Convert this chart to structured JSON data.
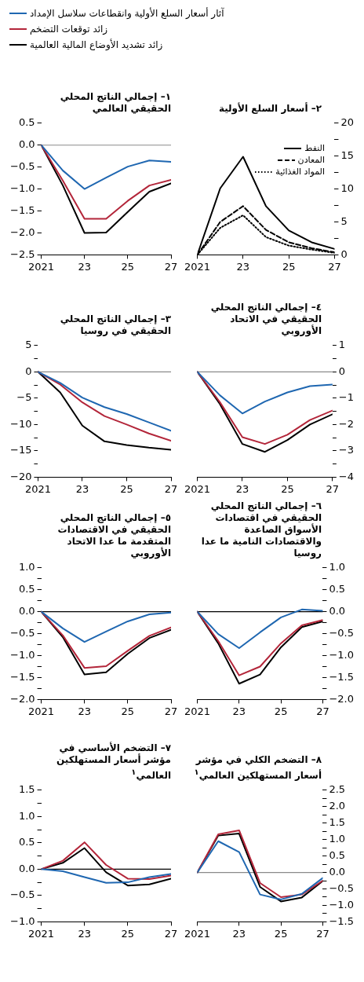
{
  "chart_data": [
    {
      "type": "line",
      "title": "١– إجمالي الناتج المحلي الحقيقي العالمي",
      "legend": "top",
      "x": [
        2021,
        2022,
        2023,
        2024,
        2025,
        2026,
        2027
      ],
      "xlim": [
        2021,
        2027
      ],
      "xticks": [
        {
          "value": 2021,
          "label": "2021"
        },
        {
          "value": 2023,
          "label": "23"
        },
        {
          "value": 2025,
          "label": "25"
        },
        {
          "value": 2027,
          "label": "27"
        }
      ],
      "ylim": [
        -2.5,
        0.5
      ],
      "yticks": [
        {
          "value": -2.5,
          "label": "−2.5"
        },
        {
          "value": -2,
          "label": "−2.0"
        },
        {
          "value": -1.5,
          "label": "−1.5"
        },
        {
          "value": -1,
          "label": "−1.0"
        },
        {
          "value": -0.5,
          "label": "−0.5"
        },
        {
          "value": 0,
          "label": "0.0"
        },
        {
          "value": 0.5,
          "label": "0.5"
        }
      ],
      "grid": false,
      "ref_lines": [
        {
          "axis": "y",
          "value": 0,
          "color": "#8a8a8a"
        }
      ],
      "series": [
        {
          "name": "آثار أسعار السلع الأولية وانقطاعات سلاسل الإمداد",
          "color": "#1f67b1",
          "values": [
            0,
            -0.58,
            -1.0,
            -0.74,
            -0.49,
            -0.35,
            -0.38
          ]
        },
        {
          "name": "زائد توقعات التضخم",
          "color": "#b3263a",
          "values": [
            0,
            -0.81,
            -1.68,
            -1.68,
            -1.27,
            -0.92,
            -0.79
          ]
        },
        {
          "name": "زائد تشديد الأوضاع المالية العالمية",
          "color": "#000000",
          "values": [
            0,
            -0.92,
            -2.0,
            -1.99,
            -1.52,
            -1.06,
            -0.87
          ]
        }
      ]
    },
    {
      "type": "line",
      "title": "٢– أسعار السلع الأولية",
      "legend": "right",
      "x": [
        2021,
        2022,
        2023,
        2024,
        2025,
        2026,
        2027
      ],
      "xlim": [
        2021,
        2027
      ],
      "xticks": [
        {
          "value": 2021,
          "label": "2021"
        },
        {
          "value": 2023,
          "label": "23"
        },
        {
          "value": 2025,
          "label": "25"
        },
        {
          "value": 2027,
          "label": "27"
        }
      ],
      "ylim": [
        0,
        20
      ],
      "yticks": [
        0,
        {
          "value": 2.5,
          "label": null
        },
        5,
        {
          "value": 7.5,
          "label": null
        },
        10,
        {
          "value": 12.5,
          "label": null
        },
        15,
        {
          "value": 17.5,
          "label": null
        },
        20
      ],
      "grid": false,
      "series": [
        {
          "name": "النفط",
          "color": "#000000",
          "line_style": "solid",
          "values": [
            0,
            10.1,
            14.9,
            7.4,
            3.7,
            1.9,
            0.9
          ]
        },
        {
          "name": "المعادن",
          "color": "#000000",
          "line_style": "dashed",
          "values": [
            0,
            5.0,
            7.4,
            3.8,
            1.9,
            1.0,
            0.4
          ]
        },
        {
          "name": "المواد الغذائية",
          "color": "#000000",
          "line_style": "dotted",
          "values": [
            0,
            4.1,
            6.0,
            2.7,
            1.4,
            0.8,
            0.3
          ]
        }
      ]
    },
    {
      "type": "line",
      "title": "٣– إجمالي الناتج المحلي الحقيقي في روسيا",
      "x": [
        2021,
        2022,
        2023,
        2024,
        2025,
        2026,
        2027
      ],
      "xlim": [
        2021,
        2027
      ],
      "xticks": [
        {
          "value": 2021,
          "label": "2021"
        },
        {
          "value": 2023,
          "label": "23"
        },
        {
          "value": 2025,
          "label": "25"
        },
        {
          "value": 2027,
          "label": "27"
        }
      ],
      "ylim": [
        -20,
        5
      ],
      "yticks": [
        {
          "value": -20,
          "label": "−20"
        },
        {
          "value": -17.5,
          "label": null
        },
        {
          "value": -15,
          "label": "−15"
        },
        {
          "value": -12.5,
          "label": null
        },
        {
          "value": -10,
          "label": "−10"
        },
        {
          "value": -7.5,
          "label": null
        },
        {
          "value": -5,
          "label": "−5"
        },
        {
          "value": -2.5,
          "label": null
        },
        0,
        {
          "value": 2.5,
          "label": null
        },
        5
      ],
      "grid": false,
      "ref_lines": [
        {
          "axis": "y",
          "value": 0,
          "color": "#8a8a8a"
        }
      ],
      "series": [
        {
          "color": "#1f67b1",
          "values": [
            0,
            -2.1,
            -4.9,
            -6.7,
            -8.0,
            -9.6,
            -11.2
          ]
        },
        {
          "color": "#b3263a",
          "values": [
            0,
            -2.4,
            -5.8,
            -8.4,
            -10.0,
            -11.7,
            -13.1
          ]
        },
        {
          "color": "#000000",
          "values": [
            0,
            -3.9,
            -10.2,
            -13.2,
            -13.9,
            -14.4,
            -14.8
          ]
        }
      ]
    },
    {
      "type": "line",
      "title": "٤– إجمالي الناتج المحلي الحقيقي في الاتحاد الأوروبي",
      "x": [
        2021,
        2022,
        2023,
        2024,
        2025,
        2026,
        2027
      ],
      "xlim": [
        2021,
        2027
      ],
      "xticks": [
        {
          "value": 2021,
          "label": "2021"
        },
        {
          "value": 2023,
          "label": "23"
        },
        {
          "value": 2025,
          "label": "25"
        },
        {
          "value": 2027,
          "label": "27"
        }
      ],
      "ylim": [
        -4,
        1
      ],
      "yticks": [
        {
          "value": -4,
          "label": "−4"
        },
        {
          "value": -3.5,
          "label": null
        },
        {
          "value": -3,
          "label": "−3"
        },
        {
          "value": -2.5,
          "label": null
        },
        {
          "value": -2,
          "label": "−2"
        },
        {
          "value": -1.5,
          "label": null
        },
        {
          "value": -1,
          "label": "−1"
        },
        {
          "value": -0.5,
          "label": null
        },
        0,
        {
          "value": 0.5,
          "label": null
        },
        1
      ],
      "grid": false,
      "ref_lines": [
        {
          "axis": "y",
          "value": 0,
          "color": "#8a8a8a"
        }
      ],
      "series": [
        {
          "color": "#1f67b1",
          "values": [
            0,
            -0.89,
            -1.58,
            -1.13,
            -0.78,
            -0.54,
            -0.48
          ]
        },
        {
          "color": "#b3263a",
          "values": [
            0,
            -1.15,
            -2.48,
            -2.74,
            -2.39,
            -1.83,
            -1.47
          ]
        },
        {
          "color": "#000000",
          "values": [
            0,
            -1.22,
            -2.74,
            -3.04,
            -2.59,
            -2.0,
            -1.61
          ]
        }
      ]
    },
    {
      "type": "line",
      "title": "٥– إجمالي الناتج المحلي الحقيقي في الاقتصادات المتقدمة ما عدا الاتحاد الأوروبي",
      "x": [
        2021,
        2022,
        2023,
        2024,
        2025,
        2026,
        2027
      ],
      "xlim": [
        2021,
        2027
      ],
      "xticks": [
        {
          "value": 2021,
          "label": "2021"
        },
        {
          "value": 2023,
          "label": "23"
        },
        {
          "value": 2025,
          "label": "25"
        },
        {
          "value": 2027,
          "label": "27"
        }
      ],
      "ylim": [
        -2,
        1
      ],
      "yticks": [
        {
          "value": -2,
          "label": "−2.0"
        },
        {
          "value": -1.75,
          "label": null
        },
        {
          "value": -1.5,
          "label": "−1.5"
        },
        {
          "value": -1.25,
          "label": null
        },
        {
          "value": -1,
          "label": "−1.0"
        },
        {
          "value": -0.75,
          "label": null
        },
        {
          "value": -0.5,
          "label": "−0.5"
        },
        {
          "value": -0.25,
          "label": null
        },
        {
          "value": 0,
          "label": "0.0"
        },
        {
          "value": 0.25,
          "label": null
        },
        {
          "value": 0.5,
          "label": "0.5"
        },
        {
          "value": 0.75,
          "label": null
        },
        {
          "value": 1,
          "label": "1.0"
        }
      ],
      "grid": false,
      "ref_lines": [
        {
          "axis": "y",
          "value": 0,
          "color": "#000000"
        }
      ],
      "series": [
        {
          "color": "#1f67b1",
          "values": [
            0,
            -0.38,
            -0.69,
            -0.45,
            -0.22,
            -0.06,
            -0.02
          ]
        },
        {
          "color": "#b3263a",
          "values": [
            0,
            -0.54,
            -1.28,
            -1.24,
            -0.89,
            -0.55,
            -0.36
          ]
        },
        {
          "color": "#000000",
          "values": [
            0,
            -0.58,
            -1.43,
            -1.38,
            -0.96,
            -0.6,
            -0.41
          ]
        }
      ]
    },
    {
      "type": "line",
      "title": "٦– إجمالي الناتج المحلي الحقيقي في اقتصادات الأسواق الصاعدة والاقتصادات النامية ما عدا روسيا",
      "x": [
        2021,
        2022,
        2023,
        2024,
        2025,
        2026,
        2027
      ],
      "xlim": [
        2021,
        2027
      ],
      "xticks": [
        {
          "value": 2021,
          "label": "2021"
        },
        {
          "value": 2023,
          "label": "23"
        },
        {
          "value": 2025,
          "label": "25"
        },
        {
          "value": 2027,
          "label": "27"
        }
      ],
      "ylim": [
        -2,
        1
      ],
      "yticks": [
        {
          "value": -2,
          "label": "−2.0"
        },
        {
          "value": -1.75,
          "label": null
        },
        {
          "value": -1.5,
          "label": "−1.5"
        },
        {
          "value": -1.25,
          "label": null
        },
        {
          "value": -1,
          "label": "−1.0"
        },
        {
          "value": -0.75,
          "label": null
        },
        {
          "value": -0.5,
          "label": "−0.5"
        },
        {
          "value": -0.25,
          "label": null
        },
        {
          "value": 0,
          "label": "0.0"
        },
        {
          "value": 0.25,
          "label": null
        },
        {
          "value": 0.5,
          "label": "0.5"
        },
        {
          "value": 0.75,
          "label": null
        },
        {
          "value": 1,
          "label": "1.0"
        }
      ],
      "grid": false,
      "ref_lines": [
        {
          "axis": "y",
          "value": 0,
          "color": "#000000"
        }
      ],
      "series": [
        {
          "color": "#1f67b1",
          "values": [
            0,
            -0.51,
            -0.83,
            -0.47,
            -0.13,
            0.05,
            0.02
          ]
        },
        {
          "color": "#b3263a",
          "values": [
            0,
            -0.67,
            -1.45,
            -1.25,
            -0.72,
            -0.31,
            -0.19
          ]
        },
        {
          "color": "#000000",
          "values": [
            0,
            -0.72,
            -1.64,
            -1.43,
            -0.81,
            -0.35,
            -0.22
          ]
        }
      ]
    },
    {
      "type": "line",
      "title": "٧– التضخم الأساسي في مؤشر أسعار المستهلكين العالمي$^{١}$",
      "x": [
        2021,
        2022,
        2023,
        2024,
        2025,
        2026,
        2027
      ],
      "xlim": [
        2021,
        2027
      ],
      "xticks": [
        {
          "value": 2021,
          "label": "2021"
        },
        {
          "value": 2023,
          "label": "23"
        },
        {
          "value": 2025,
          "label": "25"
        },
        {
          "value": 2027,
          "label": "27"
        }
      ],
      "ylim": [
        -1,
        1.5
      ],
      "yticks": [
        {
          "value": -1,
          "label": "−1.0"
        },
        {
          "value": -0.75,
          "label": null
        },
        {
          "value": -0.5,
          "label": "−0.5"
        },
        {
          "value": -0.25,
          "label": null
        },
        {
          "value": 0,
          "label": "0.0"
        },
        {
          "value": 0.25,
          "label": null
        },
        {
          "value": 0.5,
          "label": "0.5"
        },
        {
          "value": 0.75,
          "label": null
        },
        {
          "value": 1,
          "label": "1.0"
        },
        {
          "value": 1.25,
          "label": null
        },
        {
          "value": 1.5,
          "label": "1.5"
        }
      ],
      "grid": false,
      "ref_lines": [
        {
          "axis": "y",
          "value": 0,
          "color": "#000000"
        }
      ],
      "series": [
        {
          "color": "#1f67b1",
          "values": [
            0,
            -0.04,
            -0.15,
            -0.26,
            -0.25,
            -0.15,
            -0.09
          ]
        },
        {
          "color": "#b3263a",
          "values": [
            0,
            0.16,
            0.51,
            0.08,
            -0.18,
            -0.19,
            -0.12
          ]
        },
        {
          "color": "#000000",
          "values": [
            0,
            0.12,
            0.4,
            -0.06,
            -0.31,
            -0.29,
            -0.18
          ]
        }
      ]
    },
    {
      "type": "line",
      "title": "٨– التضخم الكلي في مؤشر أسعار المستهلكين العالمي$^{١}$",
      "x": [
        2021,
        2022,
        2023,
        2024,
        2025,
        2026,
        2027
      ],
      "xlim": [
        2021,
        2027
      ],
      "xticks": [
        {
          "value": 2021,
          "label": "2021"
        },
        {
          "value": 2023,
          "label": "23"
        },
        {
          "value": 2025,
          "label": "25"
        },
        {
          "value": 2027,
          "label": "27"
        }
      ],
      "ylim": [
        -1.5,
        2.5
      ],
      "yticks": [
        {
          "value": -1.5,
          "label": "−1.5"
        },
        {
          "value": -1.25,
          "label": null
        },
        {
          "value": -1,
          "label": "−1.0"
        },
        {
          "value": -0.75,
          "label": null
        },
        {
          "value": -0.5,
          "label": "−0.5"
        },
        {
          "value": -0.25,
          "label": null
        },
        {
          "value": 0,
          "label": "0.0"
        },
        {
          "value": 0.25,
          "label": null
        },
        {
          "value": 0.5,
          "label": "0.5"
        },
        {
          "value": 0.75,
          "label": null
        },
        {
          "value": 1,
          "label": "1.0"
        },
        {
          "value": 1.25,
          "label": null
        },
        {
          "value": 1.5,
          "label": "1.5"
        },
        {
          "value": 1.75,
          "label": null
        },
        {
          "value": 2,
          "label": "2.0"
        },
        {
          "value": 2.25,
          "label": null
        },
        {
          "value": 2.5,
          "label": "2.5"
        }
      ],
      "grid": false,
      "ref_lines": [
        {
          "axis": "y",
          "value": 0,
          "color": "#8a8a8a"
        }
      ],
      "series": [
        {
          "color": "#1f67b1",
          "values": [
            0,
            0.95,
            0.62,
            -0.67,
            -0.82,
            -0.65,
            -0.17
          ]
        },
        {
          "color": "#b3263a",
          "values": [
            0,
            1.16,
            1.28,
            -0.32,
            -0.75,
            -0.67,
            -0.25
          ]
        },
        {
          "color": "#000000",
          "values": [
            0,
            1.12,
            1.18,
            -0.44,
            -0.88,
            -0.76,
            -0.26
          ]
        }
      ]
    }
  ]
}
